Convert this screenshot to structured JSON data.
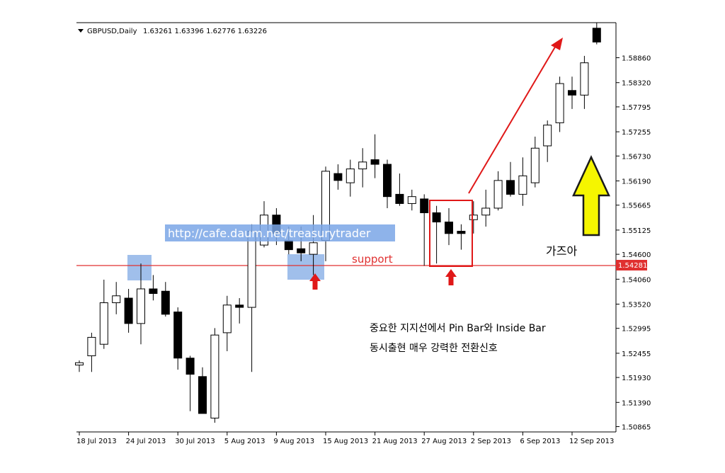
{
  "header": {
    "symbol": "GBPUSD,Daily",
    "ohlc": "1.63261 1.63396 1.62776 1.63226"
  },
  "watermark": "http://cafe.daum.net/treasurytrader",
  "annotations": {
    "support": "support",
    "current_price": "1.54281",
    "note_line1": "중요한 지지선에서 Pin Bar와 Inside Bar",
    "note_line2": "동시출현 매우 강력한 전환신호",
    "exclaim": "가즈아"
  },
  "colors": {
    "bull_body": "#ffffff",
    "bear_body": "#000000",
    "support_line": "#e03030",
    "highlight": "#8fb4e8",
    "big_arrow": "#f5f500",
    "red_arrow": "#e01818"
  },
  "chart_data": {
    "type": "candlestick",
    "title": "GBPUSD,Daily",
    "ylim": [
      1.5075,
      1.5962
    ],
    "support_level": 1.54281,
    "y_ticks": [
      "1.58860",
      "1.58320",
      "1.57795",
      "1.57255",
      "1.56730",
      "1.56190",
      "1.55665",
      "1.55125",
      "1.54600",
      "1.54060",
      "1.53520",
      "1.52995",
      "1.52455",
      "1.51930",
      "1.51390",
      "1.50865"
    ],
    "x_ticks": [
      {
        "label": "18 Jul 2013",
        "index": 0
      },
      {
        "label": "24 Jul 2013",
        "index": 4
      },
      {
        "label": "30 Jul 2013",
        "index": 8
      },
      {
        "label": "5 Aug 2013",
        "index": 12
      },
      {
        "label": "9 Aug 2013",
        "index": 16
      },
      {
        "label": "15 Aug 2013",
        "index": 20
      },
      {
        "label": "21 Aug 2013",
        "index": 24
      },
      {
        "label": "27 Aug 2013",
        "index": 28
      },
      {
        "label": "2 Sep 2013",
        "index": 32
      },
      {
        "label": "6 Sep 2013",
        "index": 36
      },
      {
        "label": "12 Sep 2013",
        "index": 40
      }
    ],
    "candles": [
      {
        "o": 1.522,
        "h": 1.523,
        "l": 1.5205,
        "c": 1.5225
      },
      {
        "o": 1.524,
        "h": 1.529,
        "l": 1.5205,
        "c": 1.528
      },
      {
        "o": 1.5265,
        "h": 1.5405,
        "l": 1.5255,
        "c": 1.5355
      },
      {
        "o": 1.5355,
        "h": 1.54,
        "l": 1.533,
        "c": 1.537
      },
      {
        "o": 1.5365,
        "h": 1.5385,
        "l": 1.529,
        "c": 1.531
      },
      {
        "o": 1.531,
        "h": 1.544,
        "l": 1.5265,
        "c": 1.5385
      },
      {
        "o": 1.5385,
        "h": 1.5415,
        "l": 1.536,
        "c": 1.5375
      },
      {
        "o": 1.538,
        "h": 1.54,
        "l": 1.5325,
        "c": 1.533
      },
      {
        "o": 1.5335,
        "h": 1.5345,
        "l": 1.521,
        "c": 1.5235
      },
      {
        "o": 1.5235,
        "h": 1.524,
        "l": 1.512,
        "c": 1.52
      },
      {
        "o": 1.5195,
        "h": 1.5215,
        "l": 1.512,
        "c": 1.5115
      },
      {
        "o": 1.5105,
        "h": 1.53,
        "l": 1.5095,
        "c": 1.5285
      },
      {
        "o": 1.529,
        "h": 1.537,
        "l": 1.525,
        "c": 1.535
      },
      {
        "o": 1.535,
        "h": 1.5365,
        "l": 1.531,
        "c": 1.5345
      },
      {
        "o": 1.5345,
        "h": 1.5525,
        "l": 1.5205,
        "c": 1.551
      },
      {
        "o": 1.548,
        "h": 1.5575,
        "l": 1.5475,
        "c": 1.5545
      },
      {
        "o": 1.5545,
        "h": 1.556,
        "l": 1.548,
        "c": 1.5505
      },
      {
        "o": 1.549,
        "h": 1.552,
        "l": 1.546,
        "c": 1.547
      },
      {
        "o": 1.5472,
        "h": 1.552,
        "l": 1.5445,
        "c": 1.5463
      },
      {
        "o": 1.546,
        "h": 1.5545,
        "l": 1.5415,
        "c": 1.5485
      },
      {
        "o": 1.549,
        "h": 1.565,
        "l": 1.5445,
        "c": 1.564
      },
      {
        "o": 1.5635,
        "h": 1.5655,
        "l": 1.56,
        "c": 1.562
      },
      {
        "o": 1.5615,
        "h": 1.5665,
        "l": 1.5585,
        "c": 1.5645
      },
      {
        "o": 1.5645,
        "h": 1.569,
        "l": 1.5605,
        "c": 1.566
      },
      {
        "o": 1.5665,
        "h": 1.572,
        "l": 1.5625,
        "c": 1.5655
      },
      {
        "o": 1.5655,
        "h": 1.5665,
        "l": 1.556,
        "c": 1.5585
      },
      {
        "o": 1.559,
        "h": 1.5635,
        "l": 1.5565,
        "c": 1.557
      },
      {
        "o": 1.557,
        "h": 1.56,
        "l": 1.5555,
        "c": 1.5585
      },
      {
        "o": 1.558,
        "h": 1.559,
        "l": 1.5435,
        "c": 1.555
      },
      {
        "o": 1.555,
        "h": 1.5565,
        "l": 1.544,
        "c": 1.553
      },
      {
        "o": 1.553,
        "h": 1.556,
        "l": 1.548,
        "c": 1.5505
      },
      {
        "o": 1.551,
        "h": 1.5525,
        "l": 1.547,
        "c": 1.5505
      },
      {
        "o": 1.5535,
        "h": 1.5575,
        "l": 1.5505,
        "c": 1.5545
      },
      {
        "o": 1.5545,
        "h": 1.56,
        "l": 1.552,
        "c": 1.556
      },
      {
        "o": 1.556,
        "h": 1.564,
        "l": 1.5555,
        "c": 1.562
      },
      {
        "o": 1.562,
        "h": 1.566,
        "l": 1.5585,
        "c": 1.559
      },
      {
        "o": 1.559,
        "h": 1.567,
        "l": 1.5565,
        "c": 1.563
      },
      {
        "o": 1.5615,
        "h": 1.5715,
        "l": 1.5605,
        "c": 1.569
      },
      {
        "o": 1.5695,
        "h": 1.575,
        "l": 1.566,
        "c": 1.574
      },
      {
        "o": 1.5745,
        "h": 1.5845,
        "l": 1.5725,
        "c": 1.583
      },
      {
        "o": 1.5815,
        "h": 1.5845,
        "l": 1.5775,
        "c": 1.5805
      },
      {
        "o": 1.5805,
        "h": 1.589,
        "l": 1.5775,
        "c": 1.5875
      },
      {
        "o": 1.595,
        "h": 1.5962,
        "l": 1.5915,
        "c": 1.592
      }
    ]
  }
}
